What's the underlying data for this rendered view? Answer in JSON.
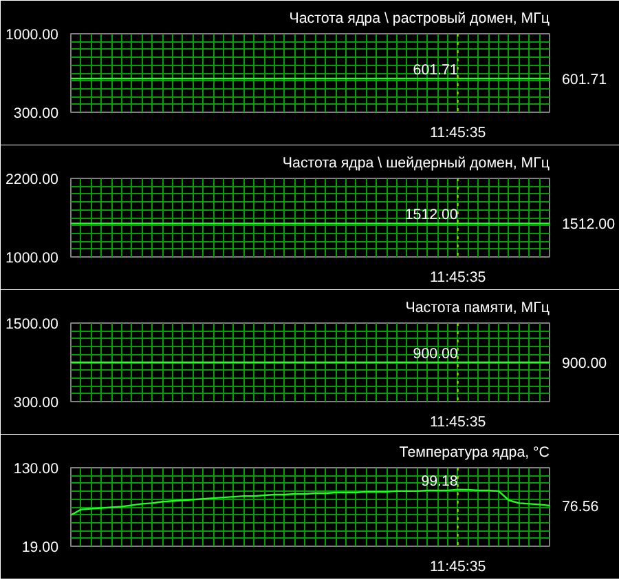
{
  "chart_data": [
    {
      "type": "line",
      "title": "Частота ядра \\ растровый домен, МГц",
      "categories": [
        null,
        null,
        null,
        null,
        null,
        null,
        null,
        null,
        null,
        null,
        null,
        null,
        null,
        null,
        null,
        null,
        null,
        null,
        null,
        null,
        null,
        null,
        null,
        null,
        null,
        null,
        null,
        null,
        null,
        null,
        null,
        null,
        null,
        null,
        null,
        null,
        null,
        null,
        "11:45:35",
        null,
        null,
        null,
        null,
        null,
        null,
        null,
        null,
        null
      ],
      "ylim": [
        300,
        1000
      ],
      "yticks": [
        {
          "value": 300,
          "label": "300.00"
        },
        {
          "value": 370,
          "label": null
        },
        {
          "value": 440,
          "label": null
        },
        {
          "value": 510,
          "label": null
        },
        {
          "value": 580,
          "label": null
        },
        {
          "value": 650,
          "label": null
        },
        {
          "value": 720,
          "label": null
        },
        {
          "value": 790,
          "label": null
        },
        {
          "value": 860,
          "label": null
        },
        {
          "value": 930,
          "label": null
        },
        {
          "value": 1000,
          "label": "1000.00"
        }
      ],
      "grid": true,
      "series": [
        {
          "color": "#20ff20",
          "values": [
            601.71,
            601.71,
            601.71,
            601.71,
            601.71,
            601.71,
            601.71,
            601.71,
            601.71,
            601.71,
            601.71,
            601.71,
            601.71,
            601.71,
            601.71,
            601.71,
            601.71,
            601.71,
            601.71,
            601.71,
            601.71,
            601.71,
            601.71,
            601.71,
            601.71,
            601.71,
            601.71,
            601.71,
            601.71,
            601.71,
            601.71,
            601.71,
            601.71,
            601.71,
            601.71,
            601.71,
            601.71,
            601.71,
            601.71,
            601.71,
            601.71,
            601.71,
            601.71,
            601.71,
            601.71,
            601.71,
            601.71,
            601.71
          ],
          "value_labels": [
            null,
            null,
            null,
            null,
            null,
            null,
            null,
            null,
            null,
            null,
            null,
            null,
            null,
            null,
            null,
            null,
            null,
            null,
            null,
            null,
            null,
            null,
            null,
            null,
            null,
            null,
            null,
            null,
            null,
            null,
            null,
            null,
            null,
            null,
            null,
            null,
            null,
            null,
            null,
            null,
            null,
            null,
            null,
            null,
            null,
            null,
            null,
            "601.71"
          ]
        }
      ],
      "ref_lines": [
        {
          "axis": "x",
          "value": "11:45:35",
          "color": "#c8c800",
          "line_style": "dotted"
        }
      ],
      "annotations": [
        {
          "text": "601.71",
          "x": "11:45:35",
          "y": 601.71
        }
      ]
    },
    {
      "type": "line",
      "title": "Частота ядра \\ шейдерный домен, МГц",
      "categories": [
        null,
        null,
        null,
        null,
        null,
        null,
        null,
        null,
        null,
        null,
        null,
        null,
        null,
        null,
        null,
        null,
        null,
        null,
        null,
        null,
        null,
        null,
        null,
        null,
        null,
        null,
        null,
        null,
        null,
        null,
        null,
        null,
        null,
        null,
        null,
        null,
        null,
        null,
        "11:45:35",
        null,
        null,
        null,
        null,
        null,
        null,
        null,
        null,
        null
      ],
      "ylim": [
        1000,
        2200
      ],
      "yticks": [
        {
          "value": 1000,
          "label": "1000.00"
        },
        {
          "value": 1120,
          "label": null
        },
        {
          "value": 1240,
          "label": null
        },
        {
          "value": 1360,
          "label": null
        },
        {
          "value": 1480,
          "label": null
        },
        {
          "value": 1600,
          "label": null
        },
        {
          "value": 1720,
          "label": null
        },
        {
          "value": 1840,
          "label": null
        },
        {
          "value": 1960,
          "label": null
        },
        {
          "value": 2080,
          "label": null
        },
        {
          "value": 2200,
          "label": "2200.00"
        }
      ],
      "grid": true,
      "series": [
        {
          "color": "#20ff20",
          "values": [
            1512,
            1512,
            1512,
            1512,
            1512,
            1512,
            1512,
            1512,
            1512,
            1512,
            1512,
            1512,
            1512,
            1512,
            1512,
            1512,
            1512,
            1512,
            1512,
            1512,
            1512,
            1512,
            1512,
            1512,
            1512,
            1512,
            1512,
            1512,
            1512,
            1512,
            1512,
            1512,
            1512,
            1512,
            1512,
            1512,
            1512,
            1512,
            1512,
            1512,
            1512,
            1512,
            1512,
            1512,
            1512,
            1512,
            1512,
            1512
          ],
          "value_labels": [
            null,
            null,
            null,
            null,
            null,
            null,
            null,
            null,
            null,
            null,
            null,
            null,
            null,
            null,
            null,
            null,
            null,
            null,
            null,
            null,
            null,
            null,
            null,
            null,
            null,
            null,
            null,
            null,
            null,
            null,
            null,
            null,
            null,
            null,
            null,
            null,
            null,
            null,
            null,
            null,
            null,
            null,
            null,
            null,
            null,
            null,
            null,
            "1512.00"
          ]
        }
      ],
      "ref_lines": [
        {
          "axis": "x",
          "value": "11:45:35",
          "color": "#c8c800",
          "line_style": "dotted"
        }
      ],
      "annotations": [
        {
          "text": "1512.00",
          "x": "11:45:35",
          "y": 1512
        }
      ]
    },
    {
      "type": "line",
      "title": "Частота памяти, МГц",
      "categories": [
        null,
        null,
        null,
        null,
        null,
        null,
        null,
        null,
        null,
        null,
        null,
        null,
        null,
        null,
        null,
        null,
        null,
        null,
        null,
        null,
        null,
        null,
        null,
        null,
        null,
        null,
        null,
        null,
        null,
        null,
        null,
        null,
        null,
        null,
        null,
        null,
        null,
        null,
        "11:45:35",
        null,
        null,
        null,
        null,
        null,
        null,
        null,
        null,
        null
      ],
      "ylim": [
        300,
        1500
      ],
      "yticks": [
        {
          "value": 300,
          "label": "300.00"
        },
        {
          "value": 420,
          "label": null
        },
        {
          "value": 540,
          "label": null
        },
        {
          "value": 660,
          "label": null
        },
        {
          "value": 780,
          "label": null
        },
        {
          "value": 900,
          "label": null
        },
        {
          "value": 1020,
          "label": null
        },
        {
          "value": 1140,
          "label": null
        },
        {
          "value": 1260,
          "label": null
        },
        {
          "value": 1380,
          "label": null
        },
        {
          "value": 1500,
          "label": "1500.00"
        }
      ],
      "grid": true,
      "series": [
        {
          "color": "#20ff20",
          "values": [
            900,
            900,
            900,
            900,
            900,
            900,
            900,
            900,
            900,
            900,
            900,
            900,
            900,
            900,
            900,
            900,
            900,
            900,
            900,
            900,
            900,
            900,
            900,
            900,
            900,
            900,
            900,
            900,
            900,
            900,
            900,
            900,
            900,
            900,
            900,
            900,
            900,
            900,
            900,
            900,
            900,
            900,
            900,
            900,
            900,
            900,
            900,
            900
          ],
          "value_labels": [
            null,
            null,
            null,
            null,
            null,
            null,
            null,
            null,
            null,
            null,
            null,
            null,
            null,
            null,
            null,
            null,
            null,
            null,
            null,
            null,
            null,
            null,
            null,
            null,
            null,
            null,
            null,
            null,
            null,
            null,
            null,
            null,
            null,
            null,
            null,
            null,
            null,
            null,
            null,
            null,
            null,
            null,
            null,
            null,
            null,
            null,
            null,
            "900.00"
          ]
        }
      ],
      "ref_lines": [
        {
          "axis": "x",
          "value": "11:45:35",
          "color": "#c8c800",
          "line_style": "dotted"
        }
      ],
      "annotations": [
        {
          "text": "900.00",
          "x": "11:45:35",
          "y": 900
        }
      ]
    },
    {
      "type": "line",
      "title": "Температура ядра, °C",
      "categories": [
        null,
        null,
        null,
        null,
        null,
        null,
        null,
        null,
        null,
        null,
        null,
        null,
        null,
        null,
        null,
        null,
        null,
        null,
        null,
        null,
        null,
        null,
        null,
        null,
        null,
        null,
        null,
        null,
        null,
        null,
        null,
        null,
        null,
        null,
        null,
        null,
        null,
        null,
        "11:45:35",
        null,
        null,
        null,
        null,
        null,
        null,
        null,
        null,
        null
      ],
      "ylim": [
        19,
        130
      ],
      "yticks": [
        {
          "value": 19,
          "label": "19.00"
        },
        {
          "value": 30.1,
          "label": null
        },
        {
          "value": 41.2,
          "label": null
        },
        {
          "value": 52.3,
          "label": null
        },
        {
          "value": 63.4,
          "label": null
        },
        {
          "value": 74.5,
          "label": null
        },
        {
          "value": 85.6,
          "label": null
        },
        {
          "value": 96.7,
          "label": null
        },
        {
          "value": 107.8,
          "label": null
        },
        {
          "value": 118.9,
          "label": null
        },
        {
          "value": 130,
          "label": "130.00"
        }
      ],
      "grid": true,
      "series": [
        {
          "color": "#20ff20",
          "values": [
            63,
            71,
            72,
            73,
            74,
            75,
            77,
            79,
            80,
            82,
            83,
            84,
            85,
            86,
            87,
            88,
            89,
            90,
            90,
            91,
            92,
            92,
            93,
            93,
            94,
            94,
            95,
            95,
            95,
            96,
            96,
            96,
            97,
            97,
            97,
            98,
            98,
            98,
            99.18,
            99,
            98,
            98,
            97,
            84,
            80,
            79,
            78,
            76.56
          ],
          "value_labels": [
            null,
            null,
            null,
            null,
            null,
            null,
            null,
            null,
            null,
            null,
            null,
            null,
            null,
            null,
            null,
            null,
            null,
            null,
            null,
            null,
            null,
            null,
            null,
            null,
            null,
            null,
            null,
            null,
            null,
            null,
            null,
            null,
            null,
            null,
            null,
            null,
            null,
            null,
            null,
            null,
            null,
            null,
            null,
            null,
            null,
            null,
            null,
            "76.56"
          ]
        }
      ],
      "ref_lines": [
        {
          "axis": "x",
          "value": "11:45:35",
          "color": "#c8c800",
          "line_style": "dotted"
        }
      ],
      "annotations": [
        {
          "text": "99.18",
          "x": "11:45:35",
          "y": 99.18
        }
      ]
    }
  ]
}
